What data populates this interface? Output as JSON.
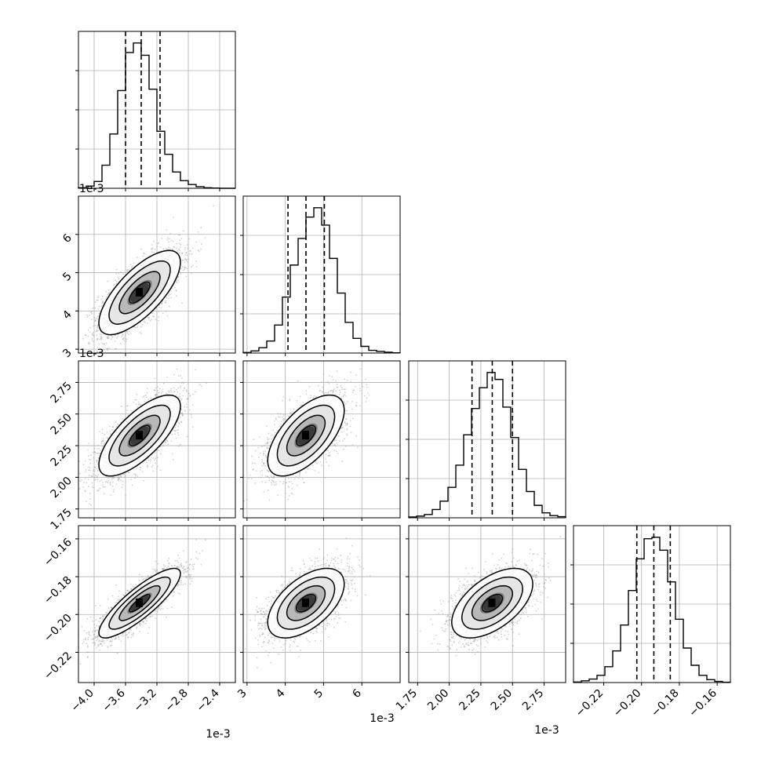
{
  "chart_data": {
    "type": "corner",
    "n_params": 4,
    "grid": true,
    "quantile_lines": "dashed",
    "colors": {
      "line": "#000000",
      "grid": "#b0b0b0",
      "points": "#9a9a9a"
    },
    "axis_scale_labels": {
      "p0": "1e-3",
      "p1": "1e-3",
      "p2": "1e-3",
      "p3": ""
    },
    "parameters": [
      {
        "id": "p0",
        "range": [
          -4.2,
          -2.2
        ],
        "ticks": [
          -4.0,
          -3.6,
          -3.2,
          -2.8,
          -2.4
        ],
        "tick_labels": [
          "−4.0",
          "−3.6",
          "−3.2",
          "−2.8",
          "−2.4"
        ],
        "quantiles": [
          -3.6,
          -3.4,
          -3.16
        ],
        "hist_edges_start": -4.2,
        "hist_bin_width": 0.1,
        "hist_counts": [
          2,
          8,
          25,
          85,
          200,
          360,
          500,
          535,
          490,
          365,
          210,
          125,
          60,
          28,
          14,
          6,
          2,
          1,
          0,
          0
        ]
      },
      {
        "id": "p1",
        "range": [
          2.9,
          7.0
        ],
        "ticks": [
          3,
          4,
          5,
          6
        ],
        "tick_labels": [
          "3",
          "4",
          "5",
          "6"
        ],
        "quantiles": [
          4.07,
          4.54,
          5.02
        ],
        "hist_edges_start": 2.9,
        "hist_bin_width": 0.205,
        "hist_counts": [
          2,
          8,
          20,
          45,
          105,
          210,
          330,
          430,
          510,
          545,
          480,
          355,
          225,
          115,
          55,
          25,
          10,
          6,
          3,
          1
        ]
      },
      {
        "id": "p2",
        "range": [
          1.68,
          2.92
        ],
        "ticks": [
          1.75,
          2.0,
          2.25,
          2.5,
          2.75
        ],
        "tick_labels": [
          "1.75",
          "2.00",
          "2.25",
          "2.50",
          "2.75"
        ],
        "quantiles": [
          2.18,
          2.34,
          2.5
        ],
        "hist_edges_start": 1.68,
        "hist_bin_width": 0.062,
        "hist_counts": [
          3,
          6,
          12,
          30,
          60,
          110,
          190,
          300,
          395,
          470,
          525,
          500,
          400,
          290,
          175,
          95,
          45,
          18,
          8,
          4
        ]
      },
      {
        "id": "p3",
        "range": [
          -0.236,
          -0.153
        ],
        "ticks": [
          -0.22,
          -0.2,
          -0.18,
          -0.16
        ],
        "tick_labels": [
          "−0.22",
          "−0.20",
          "−0.18",
          "−0.16"
        ],
        "quantiles": [
          -0.2025,
          -0.1935,
          -0.1848
        ],
        "hist_edges_start": -0.236,
        "hist_bin_width": 0.00415,
        "hist_counts": [
          2,
          6,
          12,
          25,
          55,
          110,
          200,
          320,
          430,
          500,
          505,
          460,
          350,
          220,
          120,
          60,
          25,
          10,
          4,
          1
        ]
      }
    ],
    "pairs": [
      {
        "row": 1,
        "col": 0,
        "center": [
          -3.42,
          4.48
        ],
        "sx": 0.26,
        "sy": 0.55,
        "rho": 0.72
      },
      {
        "row": 2,
        "col": 0,
        "center": [
          -3.42,
          2.33
        ],
        "sx": 0.26,
        "sy": 0.16,
        "rho": 0.72
      },
      {
        "row": 2,
        "col": 1,
        "center": [
          4.54,
          2.33
        ],
        "sx": 0.5,
        "sy": 0.16,
        "rho": 0.62
      },
      {
        "row": 3,
        "col": 0,
        "center": [
          -3.42,
          -0.194
        ],
        "sx": 0.26,
        "sy": 0.0092,
        "rho": 0.85
      },
      {
        "row": 3,
        "col": 1,
        "center": [
          4.54,
          -0.194
        ],
        "sx": 0.5,
        "sy": 0.0092,
        "rho": 0.55
      },
      {
        "row": 3,
        "col": 2,
        "center": [
          2.34,
          -0.194
        ],
        "sx": 0.16,
        "sy": 0.0092,
        "rho": 0.55
      }
    ],
    "contour_levels": [
      0.5,
      1.0,
      1.5,
      2.0
    ],
    "n_scatter_points": 2600
  }
}
